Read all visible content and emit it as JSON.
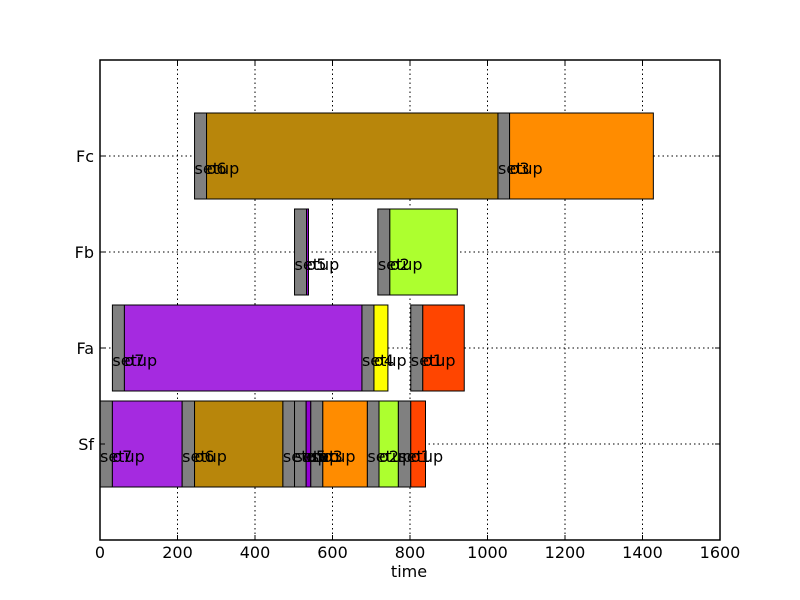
{
  "chart_data": {
    "type": "bar",
    "orientation": "horizontal",
    "title": "",
    "xlabel": "time",
    "ylabel": "",
    "xlim": [
      0,
      1600
    ],
    "xticks": [
      0,
      200,
      400,
      600,
      800,
      1000,
      1200,
      1400,
      1600
    ],
    "grid": true,
    "categories": [
      "Sf",
      "Fa",
      "Fb",
      "Fc"
    ],
    "colors": {
      "setup": "#808080",
      "o1": "#ff4500",
      "o2": "#adff2f",
      "o3": "#ff8c00",
      "o4": "#ffff00",
      "o5": "#9400d3",
      "o6": "#b8860b",
      "o7": "#a52ae0"
    },
    "series": [
      {
        "category": "Sf",
        "label": "setup",
        "start": 0,
        "end": 32,
        "kind": "setup"
      },
      {
        "category": "Sf",
        "label": "o7",
        "start": 32,
        "end": 212,
        "kind": "o7"
      },
      {
        "category": "Sf",
        "label": "setup",
        "start": 212,
        "end": 244,
        "kind": "setup"
      },
      {
        "category": "Sf",
        "label": "o6",
        "start": 244,
        "end": 472,
        "kind": "o6"
      },
      {
        "category": "Sf",
        "label": "setup",
        "start": 472,
        "end": 502,
        "kind": "setup"
      },
      {
        "category": "Sf",
        "label": "setup",
        "start": 502,
        "end": 532,
        "kind": "setup"
      },
      {
        "category": "Sf",
        "label": "o5",
        "start": 532,
        "end": 544,
        "kind": "o5"
      },
      {
        "category": "Sf",
        "label": "setup",
        "start": 544,
        "end": 575,
        "kind": "setup"
      },
      {
        "category": "Sf",
        "label": "o3",
        "start": 575,
        "end": 690,
        "kind": "o3"
      },
      {
        "category": "Sf",
        "label": "setup",
        "start": 690,
        "end": 720,
        "kind": "setup"
      },
      {
        "category": "Sf",
        "label": "o2",
        "start": 720,
        "end": 770,
        "kind": "o2"
      },
      {
        "category": "Sf",
        "label": "setup",
        "start": 770,
        "end": 802,
        "kind": "setup"
      },
      {
        "category": "Sf",
        "label": "o1",
        "start": 802,
        "end": 840,
        "kind": "o1"
      },
      {
        "category": "Fa",
        "label": "setup",
        "start": 32,
        "end": 63,
        "kind": "setup"
      },
      {
        "category": "Fa",
        "label": "o7",
        "start": 63,
        "end": 676,
        "kind": "o7"
      },
      {
        "category": "Fa",
        "label": "setup",
        "start": 676,
        "end": 707,
        "kind": "setup"
      },
      {
        "category": "Fa",
        "label": "o4",
        "start": 707,
        "end": 743,
        "kind": "o4"
      },
      {
        "category": "Fa",
        "label": "setup",
        "start": 802,
        "end": 833,
        "kind": "setup"
      },
      {
        "category": "Fa",
        "label": "o1",
        "start": 833,
        "end": 940,
        "kind": "o1"
      },
      {
        "category": "Fb",
        "label": "setup",
        "start": 502,
        "end": 533,
        "kind": "setup"
      },
      {
        "category": "Fb",
        "label": "o5",
        "start": 533,
        "end": 538,
        "kind": "o5"
      },
      {
        "category": "Fb",
        "label": "setup",
        "start": 717,
        "end": 748,
        "kind": "setup"
      },
      {
        "category": "Fb",
        "label": "o2",
        "start": 748,
        "end": 922,
        "kind": "o2"
      },
      {
        "category": "Fc",
        "label": "setup",
        "start": 244,
        "end": 275,
        "kind": "setup"
      },
      {
        "category": "Fc",
        "label": "o6",
        "start": 275,
        "end": 1027,
        "kind": "o6"
      },
      {
        "category": "Fc",
        "label": "setup",
        "start": 1027,
        "end": 1057,
        "kind": "setup"
      },
      {
        "category": "Fc",
        "label": "o3",
        "start": 1057,
        "end": 1428,
        "kind": "o3"
      }
    ]
  }
}
